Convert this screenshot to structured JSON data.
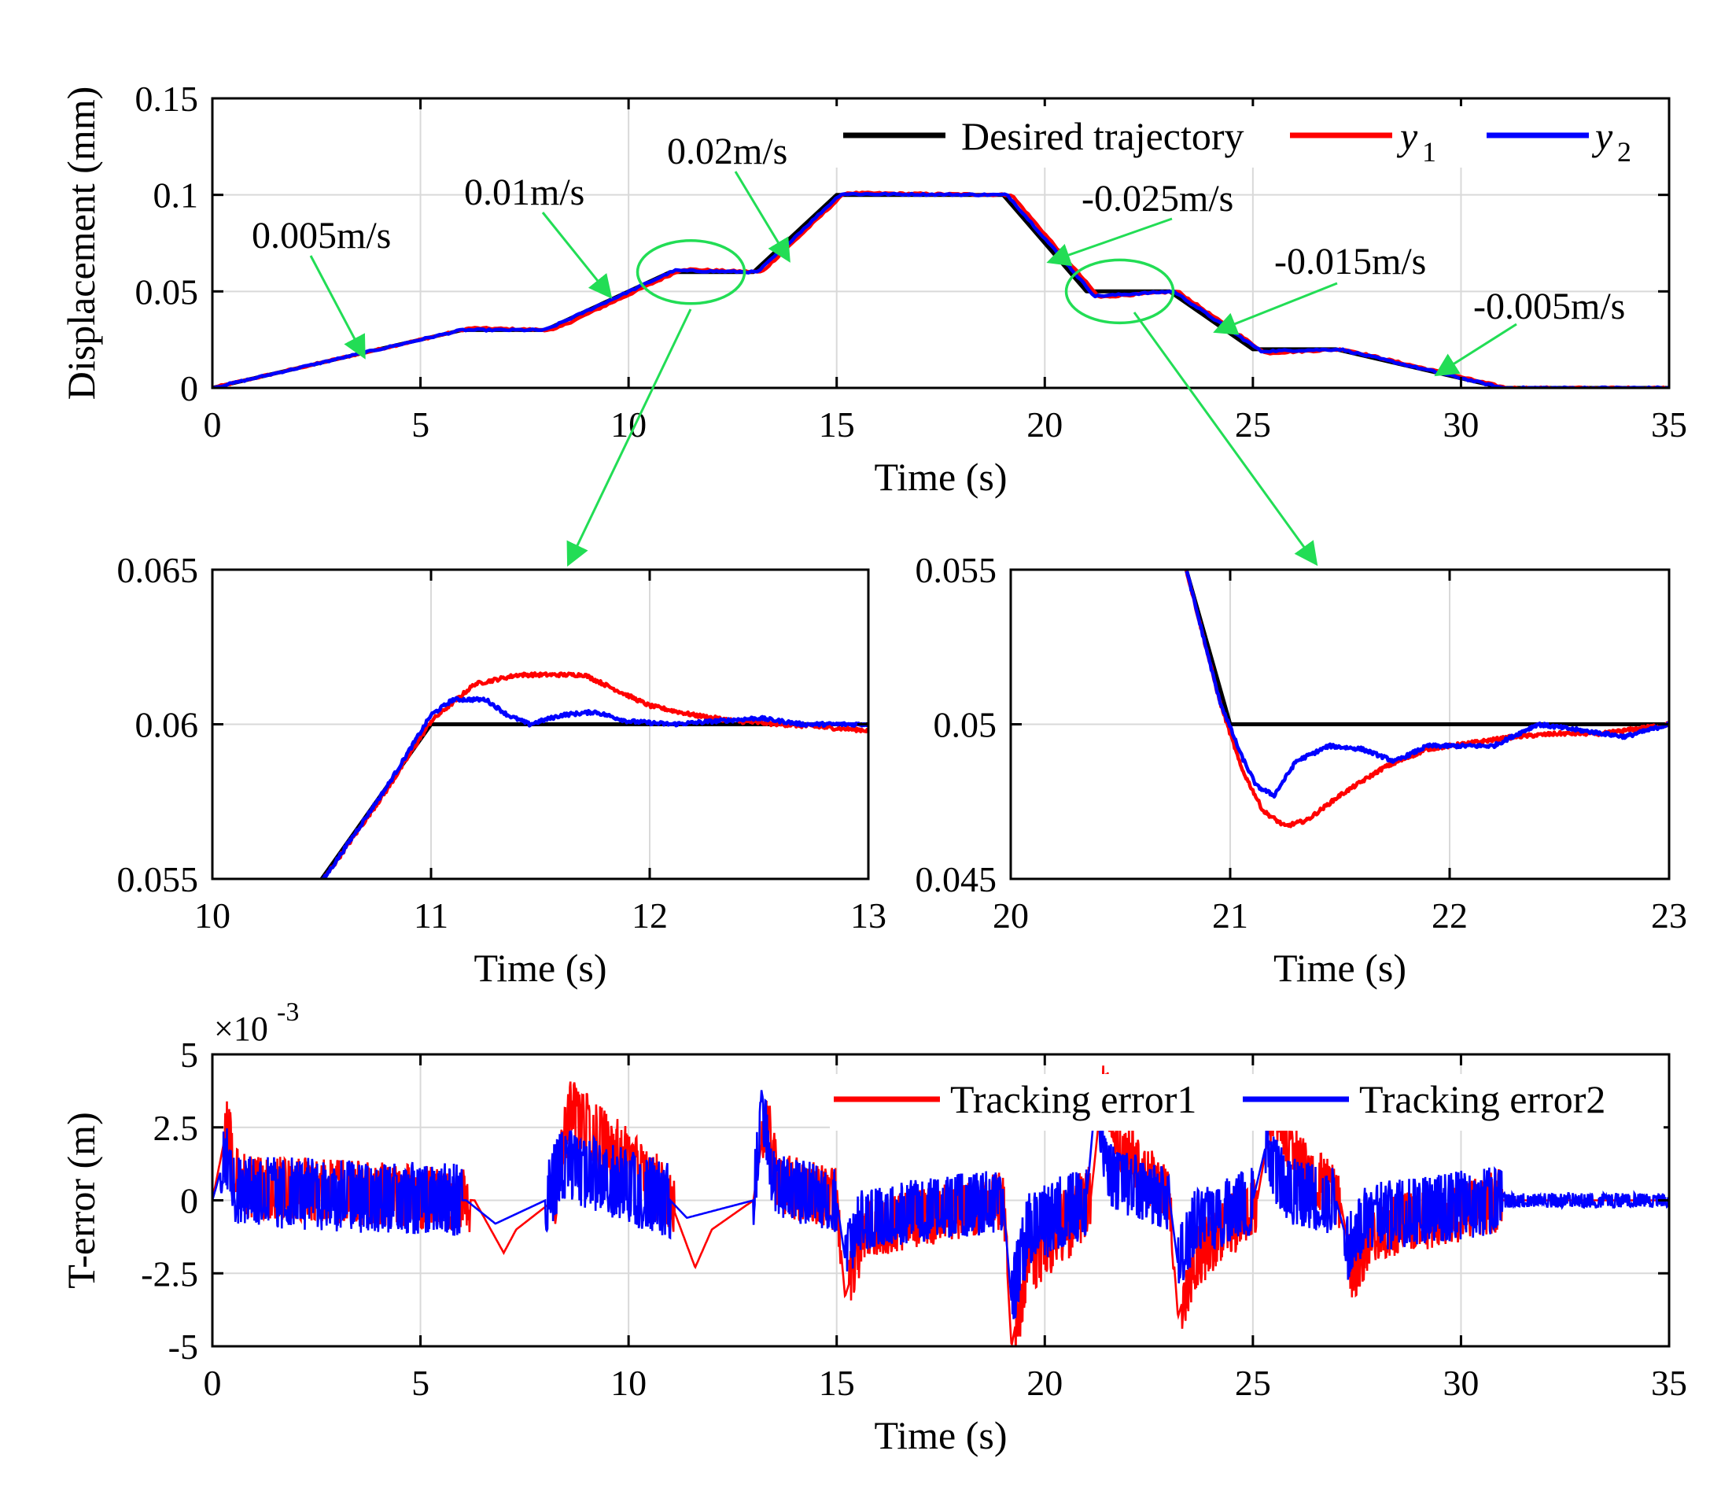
{
  "colors": {
    "desired": "#000000",
    "y1": "#ff0000",
    "y2": "#0000ff",
    "arrow": "#22dd55",
    "grid": "#d9d9d9",
    "axis": "#000000"
  },
  "chart_data": [
    {
      "id": "top",
      "type": "line",
      "title": "",
      "xlabel": "Time (s)",
      "ylabel": "Displacement (mm)",
      "xlim": [
        0,
        35
      ],
      "ylim": [
        0,
        0.15
      ],
      "xticks": [
        0,
        5,
        10,
        15,
        20,
        25,
        30,
        35
      ],
      "xticklabels": [
        "0",
        "5",
        "10",
        "15",
        "20",
        "25",
        "30",
        "35"
      ],
      "yticks": [
        0,
        0.05,
        0.1,
        0.15
      ],
      "yticklabels": [
        "0",
        "0.05",
        "0.1",
        "0.15"
      ],
      "grid": true,
      "legend": {
        "placement": "top-right",
        "entries": [
          "Desired trajectory",
          "y",
          "y"
        ],
        "subscripts": [
          "",
          "1",
          "2"
        ]
      },
      "series": [
        {
          "name": "Desired trajectory",
          "x": [
            0,
            6,
            8,
            11,
            13,
            15,
            19,
            21,
            23,
            25,
            27,
            31,
            35
          ],
          "values": [
            0,
            0.03,
            0.03,
            0.06,
            0.06,
            0.1,
            0.1,
            0.05,
            0.05,
            0.02,
            0.02,
            0,
            0
          ]
        },
        {
          "name": "y1",
          "x": [
            0,
            6.2,
            8.2,
            11.3,
            13.2,
            15.2,
            19.2,
            21.3,
            23.2,
            25.3,
            27.2,
            31.1,
            35
          ],
          "values": [
            0,
            0.031,
            0.03,
            0.0615,
            0.06,
            0.101,
            0.1,
            0.047,
            0.05,
            0.018,
            0.02,
            0,
            0
          ]
        },
        {
          "name": "y2",
          "x": [
            0,
            6,
            8,
            11.1,
            13.1,
            15.1,
            19.1,
            21.2,
            23.1,
            25.2,
            27.1,
            31,
            35
          ],
          "values": [
            0,
            0.03,
            0.03,
            0.0608,
            0.06,
            0.1005,
            0.1,
            0.0475,
            0.05,
            0.019,
            0.02,
            0,
            0
          ]
        }
      ],
      "annotations": [
        "0.005m/s",
        "0.01m/s",
        "0.02m/s",
        "-0.025m/s",
        "-0.015m/s",
        "-0.005m/s"
      ]
    },
    {
      "id": "zoom1",
      "type": "line",
      "xlabel": "Time (s)",
      "ylabel": "",
      "xlim": [
        10,
        13
      ],
      "ylim": [
        0.055,
        0.065
      ],
      "xticks": [
        10,
        11,
        12,
        13
      ],
      "xticklabels": [
        "10",
        "11",
        "12",
        "13"
      ],
      "yticks": [
        0.055,
        0.06,
        0.065
      ],
      "yticklabels": [
        "0.055",
        "0.06",
        "0.065"
      ],
      "grid": true,
      "series": [
        {
          "name": "Desired trajectory",
          "x": [
            10.5,
            11,
            13
          ],
          "values": [
            0.055,
            0.06,
            0.06
          ]
        },
        {
          "name": "y1",
          "x": [
            10.5,
            10.8,
            11.0,
            11.2,
            11.4,
            11.6,
            11.7,
            11.85,
            12.0,
            12.2,
            12.4,
            12.6,
            12.8,
            13.0
          ],
          "values": [
            0.0549,
            0.0579,
            0.0601,
            0.0613,
            0.0616,
            0.0616,
            0.0616,
            0.0611,
            0.0606,
            0.0603,
            0.0601,
            0.06,
            0.0599,
            0.0598
          ]
        },
        {
          "name": "y2",
          "x": [
            10.5,
            10.8,
            11.0,
            11.1,
            11.25,
            11.35,
            11.45,
            11.6,
            11.75,
            11.9,
            12.1,
            12.3,
            12.5,
            12.7,
            13.0
          ],
          "values": [
            0.0549,
            0.058,
            0.0603,
            0.0608,
            0.0608,
            0.0603,
            0.06,
            0.0603,
            0.0604,
            0.0601,
            0.06,
            0.0601,
            0.0602,
            0.06,
            0.06
          ]
        }
      ]
    },
    {
      "id": "zoom2",
      "type": "line",
      "xlabel": "Time (s)",
      "ylabel": "",
      "xlim": [
        20,
        23
      ],
      "ylim": [
        0.045,
        0.055
      ],
      "xticks": [
        20,
        21,
        22,
        23
      ],
      "xticklabels": [
        "20",
        "21",
        "22",
        "23"
      ],
      "yticks": [
        0.045,
        0.05,
        0.055
      ],
      "yticklabels": [
        "0.045",
        "0.05",
        "0.055"
      ],
      "grid": true,
      "series": [
        {
          "name": "Desired trajectory",
          "x": [
            20.8,
            21,
            23
          ],
          "values": [
            0.055,
            0.05,
            0.05
          ]
        },
        {
          "name": "y1",
          "x": [
            20.8,
            20.95,
            21.05,
            21.15,
            21.25,
            21.35,
            21.5,
            21.7,
            21.9,
            22.1,
            22.3,
            22.5,
            22.7,
            22.9,
            23.0
          ],
          "values": [
            0.055,
            0.0508,
            0.0486,
            0.0472,
            0.0467,
            0.0469,
            0.0477,
            0.0486,
            0.0492,
            0.0494,
            0.0496,
            0.0497,
            0.0497,
            0.0499,
            0.05
          ]
        },
        {
          "name": "y2",
          "x": [
            20.8,
            20.95,
            21.05,
            21.12,
            21.2,
            21.3,
            21.45,
            21.6,
            21.75,
            21.9,
            22.05,
            22.2,
            22.4,
            22.6,
            22.8,
            23.0
          ],
          "values": [
            0.055,
            0.0508,
            0.049,
            0.048,
            0.0477,
            0.0488,
            0.0493,
            0.0492,
            0.0488,
            0.0493,
            0.0493,
            0.0493,
            0.05,
            0.0498,
            0.0496,
            0.05
          ]
        }
      ]
    },
    {
      "id": "error",
      "type": "line",
      "xlabel": "Time (s)",
      "ylabel": "T-error (m)",
      "exponent_base": "×10",
      "exponent_power": "-3",
      "xlim": [
        0,
        35
      ],
      "ylim": [
        -5,
        5
      ],
      "xticks": [
        0,
        5,
        10,
        15,
        20,
        25,
        30,
        35
      ],
      "xticklabels": [
        "0",
        "5",
        "10",
        "15",
        "20",
        "25",
        "30",
        "35"
      ],
      "yticks": [
        -5,
        -2.5,
        0,
        2.5,
        5
      ],
      "yticklabels": [
        "-5",
        "-2.5",
        "0",
        "2.5",
        "5"
      ],
      "grid": true,
      "legend": {
        "placement": "top-right",
        "entries": [
          "Tracking error1",
          "Tracking error2"
        ]
      },
      "series": [
        {
          "name": "Tracking error1",
          "noise_segments": [
            [
              0.3,
              6.2,
              1.1
            ],
            [
              8.2,
              11.1,
              1.2
            ],
            [
              13.2,
              15.1,
              1.1
            ],
            [
              15.3,
              19.1,
              1.0
            ],
            [
              19.3,
              21.1,
              1.3
            ],
            [
              21.4,
              23.1,
              1.0
            ],
            [
              23.3,
              25.1,
              1.1
            ],
            [
              25.4,
              27.1,
              1.0
            ],
            [
              27.3,
              31.0,
              1.1
            ]
          ],
          "x": [
            0,
            0.35,
            0.7,
            6.3,
            7.0,
            7.3,
            8.2,
            8.6,
            11.0,
            11.6,
            12.0,
            13.0,
            13.3,
            13.6,
            15.0,
            15.2,
            15.7,
            19.0,
            19.2,
            19.6,
            21.1,
            21.4,
            21.8,
            23.0,
            23.2,
            23.6,
            25.1,
            25.5,
            26.0,
            27.1,
            27.4,
            27.9,
            31.0,
            35.0
          ],
          "values": [
            0,
            2.5,
            0.5,
            0,
            -1.8,
            -1.0,
            0,
            3.0,
            0,
            -2.3,
            -1.0,
            0,
            3.0,
            0.6,
            0,
            -3.3,
            -1.0,
            0,
            -5.0,
            -2.0,
            0,
            4.1,
            2.0,
            0,
            -4.0,
            -2.0,
            0,
            3.3,
            1.5,
            0,
            -2.4,
            -1.0,
            0,
            0
          ]
        },
        {
          "name": "Tracking error2",
          "noise_segments": [
            [
              0.2,
              6.0,
              1.25
            ],
            [
              8.0,
              11.0,
              1.3
            ],
            [
              13.0,
              15.0,
              1.1
            ],
            [
              15.2,
              19.0,
              1.1
            ],
            [
              19.2,
              21.0,
              1.3
            ],
            [
              21.3,
              23.0,
              1.1
            ],
            [
              23.2,
              25.0,
              1.2
            ],
            [
              25.3,
              27.0,
              1.2
            ],
            [
              27.2,
              31.0,
              1.2
            ],
            [
              31.0,
              35.0,
              0.25
            ]
          ],
          "x": [
            0,
            0.3,
            0.6,
            6.1,
            6.8,
            8.0,
            8.4,
            11.0,
            11.4,
            13.0,
            13.2,
            13.5,
            15.0,
            15.2,
            15.6,
            19.0,
            19.2,
            19.6,
            21.0,
            21.2,
            21.6,
            23.0,
            23.2,
            23.6,
            25.0,
            25.3,
            25.8,
            27.0,
            27.3,
            27.7,
            31.0,
            35.0
          ],
          "values": [
            0,
            1.5,
            0.3,
            0,
            -0.8,
            0,
            1.2,
            0,
            -0.6,
            0,
            3.2,
            0.5,
            0,
            -2.0,
            -0.6,
            0,
            -3.5,
            -1.0,
            0,
            3.2,
            0.8,
            0,
            -2.2,
            -0.8,
            0,
            1.8,
            0.4,
            0,
            -1.6,
            -0.6,
            0,
            0
          ]
        }
      ]
    }
  ]
}
